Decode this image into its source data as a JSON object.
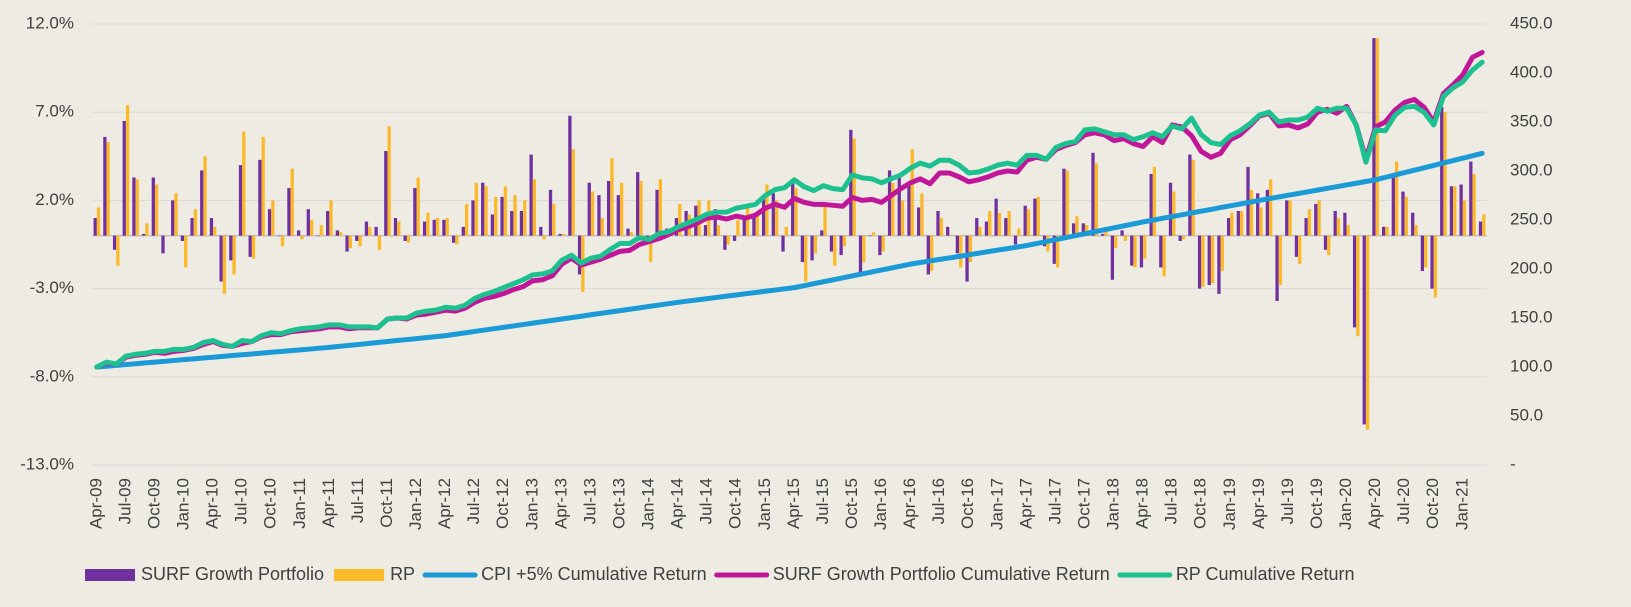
{
  "chart_data": {
    "type": "bar",
    "categories": [
      "Apr-09",
      null,
      null,
      "Jul-09",
      null,
      null,
      "Oct-09",
      null,
      null,
      "Jan-10",
      null,
      null,
      "Apr-10",
      null,
      null,
      "Jul-10",
      null,
      null,
      "Oct-10",
      null,
      null,
      "Jan-11",
      null,
      null,
      "Apr-11",
      null,
      null,
      "Jul-11",
      null,
      null,
      "Oct-11",
      null,
      null,
      "Jan-12",
      null,
      null,
      "Apr-12",
      null,
      null,
      "Jul-12",
      null,
      null,
      "Oct-12",
      null,
      null,
      "Jan-13",
      null,
      null,
      "Apr-13",
      null,
      null,
      "Jul-13",
      null,
      null,
      "Oct-13",
      null,
      null,
      "Jan-14",
      null,
      null,
      "Apr-14",
      null,
      null,
      "Jul-14",
      null,
      null,
      "Oct-14",
      null,
      null,
      "Jan-15",
      null,
      null,
      "Apr-15",
      null,
      null,
      "Jul-15",
      null,
      null,
      "Oct-15",
      null,
      null,
      "Jan-16",
      null,
      null,
      "Apr-16",
      null,
      null,
      "Jul-16",
      null,
      null,
      "Oct-16",
      null,
      null,
      "Jan-17",
      null,
      null,
      "Apr-17",
      null,
      null,
      "Jul-17",
      null,
      null,
      "Oct-17",
      null,
      null,
      "Jan-18",
      null,
      null,
      "Apr-18",
      null,
      null,
      "Jul-18",
      null,
      null,
      "Oct-18",
      null,
      null,
      "Jan-19",
      null,
      null,
      "Apr-19",
      null,
      null,
      "Jul-19",
      null,
      null,
      "Oct-19",
      null,
      null,
      "Jan-20",
      null,
      null,
      "Apr-20",
      null,
      null,
      "Jul-20",
      null,
      null,
      "Oct-20",
      null,
      null,
      "Jan-21",
      null,
      null
    ],
    "series": [
      {
        "name": "SURF Growth Portfolio",
        "type": "bar",
        "color": "#7030a0",
        "values": [
          1.0,
          5.6,
          -0.8,
          6.5,
          3.3,
          0.1,
          3.3,
          -1.0,
          2.0,
          -0.3,
          1.0,
          3.7,
          1.0,
          -2.6,
          -1.4,
          4.0,
          -1.2,
          4.3,
          1.5,
          0.0,
          2.7,
          0.3,
          1.5,
          0.0,
          1.4,
          0.3,
          -0.9,
          -0.3,
          0.8,
          0.5,
          4.8,
          1.0,
          -0.3,
          2.7,
          0.8,
          0.9,
          0.9,
          -0.4,
          0.5,
          2.0,
          3.0,
          1.2,
          2.2,
          1.4,
          1.4,
          4.6,
          0.5,
          2.6,
          0.1,
          6.8,
          -2.2,
          3.0,
          2.3,
          3.1,
          2.3,
          0.4,
          3.6,
          -0.3,
          2.6,
          0.4,
          1.0,
          1.4,
          1.7,
          0.6,
          1.5,
          -0.8,
          -0.3,
          1.0,
          1.0,
          2.3,
          2.4,
          -0.9,
          3.2,
          -1.5,
          -1.4,
          0.3,
          -0.9,
          -1.1,
          6.0,
          -2.1,
          0.0,
          -1.1,
          3.7,
          3.5,
          3.0,
          1.6,
          -2.2,
          1.4,
          0.5,
          -1.0,
          -2.6,
          1.0,
          0.8,
          2.1,
          1.0,
          -0.5,
          1.7,
          2.1,
          -0.6,
          -1.6,
          3.8,
          0.7,
          0.7,
          4.7,
          0.1,
          -2.5,
          0.3,
          -1.7,
          -1.8,
          3.5,
          -1.8,
          3.0,
          -0.3,
          4.6,
          -3.0,
          -2.8,
          -3.3,
          1.0,
          1.4,
          3.9,
          2.4,
          2.6,
          -3.7,
          2.0,
          -1.2,
          1.0,
          1.8,
          -0.8,
          1.4,
          1.3,
          -5.2,
          -10.7,
          11.2,
          0.5,
          3.5,
          2.5,
          1.3,
          -2.0,
          -3.0,
          7.3,
          2.8,
          2.9,
          4.2,
          0.8
        ]
      },
      {
        "name": "RP",
        "type": "bar",
        "color": "#fbb829",
        "values": [
          1.6,
          5.3,
          -1.7,
          7.4,
          3.2,
          0.7,
          2.9,
          0.0,
          2.4,
          -1.8,
          1.5,
          4.5,
          0.5,
          -3.3,
          -2.2,
          5.9,
          -1.3,
          5.6,
          2.0,
          -0.6,
          3.8,
          -0.2,
          0.9,
          0.6,
          2.0,
          0.2,
          -0.7,
          -0.6,
          0.5,
          -0.8,
          6.2,
          0.8,
          -0.4,
          3.3,
          1.3,
          1.0,
          1.0,
          -0.5,
          1.8,
          3.0,
          2.8,
          2.2,
          2.8,
          2.3,
          2.0,
          3.2,
          -0.2,
          1.8,
          0.1,
          4.9,
          -3.2,
          2.5,
          1.0,
          4.4,
          3.0,
          0.2,
          3.1,
          -1.5,
          3.2,
          0.4,
          1.8,
          1.2,
          2.0,
          2.0,
          0.6,
          -0.5,
          0.9,
          1.6,
          1.3,
          2.9,
          2.0,
          0.5,
          2.7,
          -2.6,
          -1.0,
          1.9,
          -1.7,
          -0.6,
          5.5,
          -1.5,
          0.2,
          -0.9,
          3.0,
          2.0,
          4.9,
          2.4,
          -2.0,
          1.0,
          0.0,
          -1.8,
          -1.5,
          0.5,
          1.4,
          1.3,
          1.4,
          0.4,
          1.5,
          2.2,
          -0.9,
          -1.8,
          3.7,
          1.1,
          0.6,
          4.1,
          0.5,
          -0.7,
          -0.3,
          -1.8,
          -1.3,
          3.9,
          -2.3,
          2.5,
          -0.2,
          4.3,
          -2.9,
          -2.7,
          -2.0,
          1.3,
          1.4,
          2.6,
          1.6,
          3.2,
          -2.8,
          2.0,
          -1.6,
          1.5,
          2.0,
          -1.1,
          1.0,
          0.6,
          -5.7,
          -11.0,
          11.2,
          0.5,
          4.2,
          2.2,
          0.6,
          -1.8,
          -3.5,
          7.0,
          2.8,
          2.0,
          3.5,
          1.2
        ]
      },
      {
        "name": "CPI +5% Cumulative Return",
        "type": "line",
        "axis": "y2",
        "color": "#1a9ad6",
        "values": [
          100,
          100.8,
          101.7,
          102.5,
          103.3,
          104.2,
          105,
          105.8,
          106.7,
          107.5,
          108.3,
          109.2,
          110,
          110.8,
          111.7,
          112.5,
          113.3,
          114.2,
          115,
          115.8,
          116.7,
          117.5,
          118.3,
          119.2,
          120,
          121,
          122,
          123,
          124,
          125,
          126,
          127,
          128,
          129,
          130,
          131,
          132,
          133.4,
          134.8,
          136.3,
          137.7,
          139.1,
          140.5,
          141.9,
          143.3,
          144.8,
          146.2,
          147.6,
          149,
          150.4,
          151.8,
          153.3,
          154.7,
          156.1,
          157.5,
          158.9,
          160.3,
          161.8,
          163.2,
          164.6,
          166,
          167.3,
          168.5,
          169.8,
          171,
          172.3,
          173.5,
          174.8,
          176,
          177.3,
          178.5,
          179.8,
          181,
          183,
          185,
          187,
          189,
          191,
          193,
          195,
          197,
          199,
          201,
          203,
          205,
          206.6,
          208.2,
          209.8,
          211.3,
          212.9,
          214.5,
          216.1,
          217.7,
          219.3,
          220.8,
          222.4,
          224,
          226,
          228,
          230,
          232,
          234,
          236,
          238,
          240,
          242,
          244,
          246,
          248,
          249.8,
          251.7,
          253.5,
          255.3,
          257.2,
          259,
          260.8,
          262.7,
          264.5,
          266.3,
          268.2,
          270,
          271.8,
          273.5,
          275.3,
          277,
          278.8,
          280.5,
          282.3,
          284,
          285.8,
          287.5,
          289.3,
          291,
          293.5,
          295.9,
          298.4,
          300.8,
          303.3,
          305.7,
          308.2,
          310.6,
          313.1,
          315.5,
          318
        ]
      },
      {
        "name": "SURF Growth Portfolio Cumulative Return",
        "type": "line",
        "axis": "y2",
        "color": "#c0179a",
        "values": [
          100,
          104,
          103,
          110,
          112,
          113,
          115,
          114,
          116,
          117,
          119,
          123,
          126,
          122,
          121,
          124,
          126,
          131,
          133,
          133,
          136,
          137,
          138,
          139,
          141,
          141,
          139,
          140,
          140,
          140,
          149,
          150,
          149,
          153,
          154,
          156,
          158,
          157,
          160,
          166,
          170,
          172,
          175,
          179,
          182,
          188,
          189,
          193,
          205,
          211,
          204,
          207,
          210,
          214,
          218,
          219,
          225,
          228,
          231,
          235,
          240,
          243,
          247,
          252,
          253,
          251,
          254,
          252,
          255,
          262,
          266,
          263,
          272,
          268,
          266,
          266,
          265,
          264,
          273,
          270,
          271,
          268,
          275,
          282,
          288,
          292,
          287,
          298,
          298,
          294,
          289,
          291,
          294,
          298,
          300,
          299,
          311,
          314,
          312,
          322,
          326,
          329,
          337,
          339,
          337,
          331,
          333,
          328,
          325,
          335,
          329,
          347,
          345,
          336,
          320,
          314,
          318,
          332,
          337,
          346,
          356,
          359,
          346,
          347,
          344,
          348,
          360,
          363,
          359,
          366,
          347,
          312,
          345,
          350,
          362,
          370,
          373,
          365,
          350,
          379,
          388,
          398,
          416,
          421
        ]
      },
      {
        "name": "RP Cumulative Return",
        "type": "line",
        "axis": "y2",
        "color": "#1dc18f",
        "values": [
          100,
          105,
          103,
          111,
          113,
          114,
          116,
          116,
          118,
          118,
          120,
          125,
          127,
          123,
          121,
          127,
          126,
          132,
          135,
          134,
          137,
          139,
          140,
          141,
          143,
          143,
          141,
          141,
          141,
          140,
          149,
          150,
          150,
          155,
          157,
          158,
          161,
          160,
          163,
          170,
          174,
          177,
          181,
          185,
          189,
          194,
          195,
          198,
          209,
          214,
          206,
          211,
          213,
          220,
          226,
          226,
          232,
          230,
          236,
          238,
          243,
          247,
          251,
          256,
          258,
          258,
          262,
          264,
          266,
          275,
          281,
          283,
          291,
          284,
          280,
          285,
          282,
          281,
          296,
          293,
          292,
          288,
          292,
          296,
          303,
          308,
          305,
          311,
          311,
          306,
          298,
          299,
          302,
          306,
          308,
          306,
          316,
          316,
          312,
          324,
          328,
          330,
          342,
          343,
          340,
          337,
          337,
          332,
          335,
          339,
          335,
          346,
          343,
          354,
          337,
          329,
          327,
          336,
          341,
          348,
          357,
          360,
          350,
          352,
          352,
          355,
          364,
          361,
          364,
          364,
          347,
          309,
          342,
          341,
          357,
          365,
          366,
          360,
          347,
          376,
          385,
          391,
          403,
          411
        ]
      }
    ],
    "ylim": [
      -13,
      12
    ],
    "yticks": [
      {
        "value": 12,
        "label": "12.0%"
      },
      {
        "value": 7,
        "label": "7.0%"
      },
      {
        "value": 2,
        "label": "2.0%"
      },
      {
        "value": -3,
        "label": "-3.0%"
      },
      {
        "value": -8,
        "label": "-8.0%"
      },
      {
        "value": -13,
        "label": "-13.0%"
      }
    ],
    "y2lim": [
      0,
      450
    ],
    "y2ticks": [
      {
        "value": 450,
        "label": "450.0"
      },
      {
        "value": 400,
        "label": "400.0"
      },
      {
        "value": 350,
        "label": "350.0"
      },
      {
        "value": 300,
        "label": "300.0"
      },
      {
        "value": 250,
        "label": "250.0"
      },
      {
        "value": 200,
        "label": "200.0"
      },
      {
        "value": 150,
        "label": "150.0"
      },
      {
        "value": 100,
        "label": "100.0"
      },
      {
        "value": 50,
        "label": "50.0"
      },
      {
        "value": 0,
        "label": "-"
      }
    ],
    "grid": true,
    "legend": "bottom"
  }
}
